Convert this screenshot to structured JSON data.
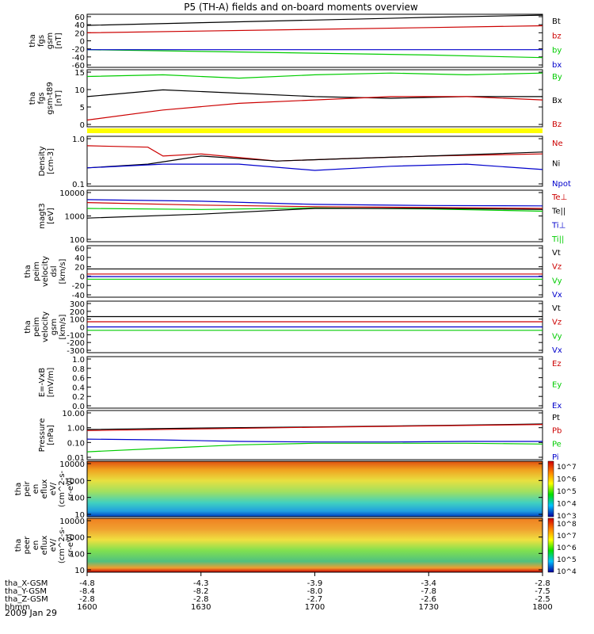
{
  "title": "P5 (TH-A) fields and on-board moments overview",
  "date": "2009 Jan 29",
  "colors": {
    "black": "#000000",
    "red": "#cc0000",
    "green": "#00cc00",
    "blue": "#0000cc",
    "yellow": "#ffff00"
  },
  "chart_data": [
    {
      "id": "fgs_gsm",
      "type": "line",
      "ylabel": [
        "tha",
        "fgs",
        "gsm",
        "[nT]"
      ],
      "yticks": [
        "60",
        "40",
        "20",
        "0",
        "-20",
        "-40",
        "-60"
      ],
      "ylim": [
        -60,
        60
      ],
      "legend": [
        {
          "name": "Bt",
          "color": "black"
        },
        {
          "name": "bz",
          "color": "red"
        },
        {
          "name": "by",
          "color": "green"
        },
        {
          "name": "bx",
          "color": "blue"
        }
      ],
      "series": [
        {
          "name": "Bt",
          "color": "black",
          "x": [
            0,
            15,
            30,
            45,
            60
          ],
          "y": [
            35,
            41,
            47,
            53,
            58
          ]
        },
        {
          "name": "bz",
          "color": "red",
          "x": [
            0,
            15,
            30,
            45,
            60
          ],
          "y": [
            18,
            22,
            26,
            30,
            34
          ]
        },
        {
          "name": "by",
          "color": "green",
          "x": [
            0,
            15,
            30,
            45,
            60
          ],
          "y": [
            -20,
            -24,
            -28,
            -32,
            -38
          ]
        },
        {
          "name": "bx",
          "color": "blue",
          "x": [
            0,
            15,
            30,
            45,
            60
          ],
          "y": [
            -20,
            -20,
            -20,
            -20,
            -20
          ]
        }
      ]
    },
    {
      "id": "fgs_t89",
      "type": "line",
      "ylabel": [
        "tha",
        "fgs",
        "gsm-t89",
        "[nT]"
      ],
      "yticks": [
        "15",
        "10",
        "5",
        "0"
      ],
      "ylim": [
        -2,
        15
      ],
      "legend": [
        {
          "name": "By",
          "color": "green"
        },
        {
          "name": "Bx",
          "color": "black"
        },
        {
          "name": "Bz",
          "color": "red"
        }
      ],
      "series": [
        {
          "name": "By",
          "color": "green",
          "x": [
            0,
            10,
            20,
            30,
            40,
            50,
            60
          ],
          "y": [
            13,
            13.5,
            12.5,
            13.5,
            14,
            13.5,
            14
          ]
        },
        {
          "name": "Bx",
          "color": "black",
          "x": [
            0,
            10,
            20,
            30,
            40,
            50,
            60
          ],
          "y": [
            7,
            9,
            8,
            7,
            6.5,
            7,
            7
          ]
        },
        {
          "name": "Bz",
          "color": "red",
          "x": [
            0,
            10,
            20,
            30,
            40,
            50,
            60
          ],
          "y": [
            0,
            3,
            5,
            6,
            7,
            7,
            6
          ]
        }
      ]
    },
    {
      "id": "density",
      "type": "line",
      "ylog": true,
      "ylabel": [
        "Density",
        "[cm-3]"
      ],
      "yticks": [
        "1.0",
        "0.1"
      ],
      "ylim": [
        0.1,
        1.2
      ],
      "legend": [
        {
          "name": "Ne",
          "color": "red"
        },
        {
          "name": "Ni",
          "color": "black"
        },
        {
          "name": "Npot",
          "color": "blue"
        }
      ],
      "series": [
        {
          "name": "Ne",
          "color": "red",
          "x": [
            0,
            8,
            10,
            15,
            25,
            35,
            45,
            60
          ],
          "y": [
            0.75,
            0.7,
            0.45,
            0.5,
            0.35,
            0.4,
            0.45,
            0.5
          ]
        },
        {
          "name": "Ni",
          "color": "black",
          "x": [
            0,
            8,
            15,
            25,
            35,
            45,
            60
          ],
          "y": [
            0.25,
            0.3,
            0.45,
            0.35,
            0.4,
            0.45,
            0.55
          ]
        },
        {
          "name": "Npot",
          "color": "blue",
          "x": [
            0,
            10,
            20,
            30,
            40,
            50,
            60
          ],
          "y": [
            0.25,
            0.3,
            0.3,
            0.22,
            0.27,
            0.3,
            0.23
          ]
        }
      ]
    },
    {
      "id": "temperature",
      "type": "line",
      "ylog": true,
      "ylabel": [
        "magt3",
        "[eV]"
      ],
      "yticks": [
        "10000",
        "1000",
        "100"
      ],
      "ylim": [
        100,
        12000
      ],
      "legend": [
        {
          "name": "Te⊥",
          "color": "red"
        },
        {
          "name": "Te||",
          "color": "black"
        },
        {
          "name": "Ti⊥",
          "color": "blue"
        },
        {
          "name": "Ti||",
          "color": "green"
        }
      ],
      "series": [
        {
          "name": "Ti⊥",
          "color": "blue",
          "x": [
            0,
            15,
            30,
            45,
            60
          ],
          "y": [
            5000,
            4300,
            3200,
            2900,
            2800
          ]
        },
        {
          "name": "Te⊥",
          "color": "red",
          "x": [
            0,
            15,
            30,
            45,
            60
          ],
          "y": [
            3800,
            3000,
            2600,
            2400,
            2200
          ]
        },
        {
          "name": "Ti||",
          "color": "green",
          "x": [
            0,
            15,
            30,
            45,
            60
          ],
          "y": [
            2200,
            2000,
            2300,
            2100,
            1700
          ]
        },
        {
          "name": "Te||",
          "color": "black",
          "x": [
            0,
            15,
            30,
            45,
            60
          ],
          "y": [
            900,
            1300,
            2200,
            2200,
            2000
          ]
        }
      ]
    },
    {
      "id": "peim_dsl",
      "type": "line",
      "ylabel": [
        "tha",
        "peim",
        "velocity",
        "dsl",
        "[km/s]"
      ],
      "yticks": [
        "60",
        "40",
        "20",
        "0",
        "-20",
        "-40"
      ],
      "ylim": [
        -40,
        60
      ],
      "legend": [
        {
          "name": "Vt",
          "color": "black"
        },
        {
          "name": "Vz",
          "color": "red"
        },
        {
          "name": "Vy",
          "color": "green"
        },
        {
          "name": "Vx",
          "color": "blue"
        }
      ],
      "series": [
        {
          "name": "Vt",
          "color": "black",
          "x": [
            0,
            60
          ],
          "y": [
            15,
            15
          ]
        },
        {
          "name": "Vz",
          "color": "red",
          "x": [
            0,
            60
          ],
          "y": [
            5,
            5
          ]
        },
        {
          "name": "Vx",
          "color": "blue",
          "x": [
            0,
            60
          ],
          "y": [
            0,
            0
          ]
        },
        {
          "name": "Vy",
          "color": "green",
          "x": [
            0,
            60
          ],
          "y": [
            -5,
            -5
          ]
        }
      ]
    },
    {
      "id": "peim_gsm",
      "type": "line",
      "ylabel": [
        "tha",
        "peim",
        "velocity",
        "gsm",
        "[km/s]"
      ],
      "yticks": [
        "300",
        "200",
        "100",
        "0",
        "-100",
        "-200",
        "-300"
      ],
      "ylim": [
        -300,
        300
      ],
      "legend": [
        {
          "name": "Vt",
          "color": "black"
        },
        {
          "name": "Vz",
          "color": "red"
        },
        {
          "name": "Vy",
          "color": "green"
        },
        {
          "name": "Vx",
          "color": "blue"
        }
      ],
      "series": [
        {
          "name": "Vt",
          "color": "black",
          "x": [
            0,
            60
          ],
          "y": [
            120,
            120
          ]
        },
        {
          "name": "Vz",
          "color": "red",
          "x": [
            0,
            60
          ],
          "y": [
            60,
            60
          ]
        },
        {
          "name": "Vx",
          "color": "blue",
          "x": [
            0,
            60
          ],
          "y": [
            0,
            0
          ]
        },
        {
          "name": "Vy",
          "color": "green",
          "x": [
            0,
            60
          ],
          "y": [
            -40,
            -40
          ]
        }
      ]
    },
    {
      "id": "efield",
      "type": "line",
      "ylabel": [
        "E=-VxB",
        "[mV/m]"
      ],
      "yticks": [
        "1.0",
        "0.8",
        "0.6",
        "0.4",
        "0.2",
        "0.0"
      ],
      "ylim": [
        0,
        1
      ],
      "legend": [
        {
          "name": "Ez",
          "color": "red"
        },
        {
          "name": "Ey",
          "color": "green"
        },
        {
          "name": "Ex",
          "color": "blue"
        }
      ],
      "series": []
    },
    {
      "id": "pressure",
      "type": "line",
      "ylog": true,
      "ylabel": [
        "Pressure",
        "[nPa]"
      ],
      "yticks": [
        "10.00",
        "1.00",
        "0.10",
        "0.01"
      ],
      "ylim": [
        0.01,
        10
      ],
      "legend": [
        {
          "name": "Pt",
          "color": "black"
        },
        {
          "name": "Pb",
          "color": "red"
        },
        {
          "name": "Pe",
          "color": "green"
        },
        {
          "name": "Pi",
          "color": "blue"
        }
      ],
      "series": [
        {
          "name": "Pt",
          "color": "black",
          "x": [
            0,
            15,
            30,
            45,
            60
          ],
          "y": [
            0.7,
            0.85,
            1.0,
            1.2,
            1.5
          ]
        },
        {
          "name": "Pb",
          "color": "red",
          "x": [
            0,
            15,
            30,
            45,
            60
          ],
          "y": [
            0.6,
            0.75,
            0.95,
            1.15,
            1.4
          ]
        },
        {
          "name": "Pi",
          "color": "blue",
          "x": [
            0,
            10,
            20,
            30,
            40,
            50,
            60
          ],
          "y": [
            0.18,
            0.16,
            0.13,
            0.12,
            0.12,
            0.13,
            0.13
          ]
        },
        {
          "name": "Pe",
          "color": "green",
          "x": [
            0,
            10,
            20,
            30,
            40,
            50,
            60
          ],
          "y": [
            0.03,
            0.05,
            0.08,
            0.1,
            0.1,
            0.1,
            0.09
          ]
        }
      ]
    },
    {
      "id": "peir",
      "type": "heatmap",
      "ylabel": [
        "tha",
        "peir",
        "en",
        "eflux",
        "eV/",
        "(cm^2-s-",
        "sr-eV)"
      ],
      "yticks": [
        "10000",
        "1000",
        "100",
        "10"
      ],
      "colorbar": {
        "labels": [
          "10^7",
          "10^6",
          "10^5",
          "10^4",
          "10^3"
        ]
      }
    },
    {
      "id": "peer",
      "type": "heatmap",
      "ylabel": [
        "tha",
        "peer",
        "en",
        "eflux",
        "eV/",
        "(cm^2-s-",
        "sr-eV)"
      ],
      "yticks": [
        "10000",
        "1000",
        "100",
        "10"
      ],
      "colorbar": {
        "labels": [
          "10^8",
          "10^7",
          "10^6",
          "10^5",
          "10^4"
        ]
      }
    }
  ],
  "xaxis": {
    "rows": [
      {
        "label": "tha_X-GSM",
        "values": [
          "-4.8",
          "-4.3",
          "-3.9",
          "-3.4",
          "-2.8"
        ]
      },
      {
        "label": "tha_Y-GSM",
        "values": [
          "-8.4",
          "-8.2",
          "-8.0",
          "-7.8",
          "-7.5"
        ]
      },
      {
        "label": "tha_Z-GSM",
        "values": [
          "-2.8",
          "-2.8",
          "-2.7",
          "-2.6",
          "-2.5"
        ]
      },
      {
        "label": "hhmm",
        "values": [
          "1600",
          "1630",
          "1700",
          "1730",
          "1800"
        ]
      }
    ]
  }
}
